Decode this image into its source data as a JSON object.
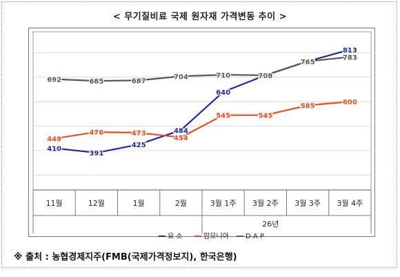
{
  "title": "< 무기질비료 국제 원자재 가격변동 추이 >",
  "source": "※ 출처 : 농협경제지주(FMB(국제가격정보지), 한국은행)",
  "colors": {
    "urea": "#1b2aa8",
    "ammonia": "#f04a1a",
    "dap": "#555555",
    "grid": "#f3c4c4"
  },
  "chart_data": {
    "type": "line",
    "title": "< 무기질비료 국제 원자재 가격변동 추이 >",
    "categories": [
      "11월",
      "12월",
      "1월",
      "2월",
      "3월 1주",
      "3월 2주",
      "3월 3주",
      "3월 4주"
    ],
    "group_label": "26년",
    "ylim": [
      0,
      830
    ],
    "grid": true,
    "legend_position": "bottom",
    "series": [
      {
        "name": "요 소",
        "color": "#1b2aa8",
        "values": [
          410,
          391,
          425,
          484,
          640,
          708,
          765,
          813
        ]
      },
      {
        "name": "암모니아",
        "color": "#f04a1a",
        "values": [
          449,
          476,
          473,
          454,
          545,
          545,
          585,
          600
        ]
      },
      {
        "name": "D A P",
        "color": "#555555",
        "values": [
          692,
          685,
          687,
          704,
          710,
          708,
          765,
          783
        ]
      }
    ]
  }
}
